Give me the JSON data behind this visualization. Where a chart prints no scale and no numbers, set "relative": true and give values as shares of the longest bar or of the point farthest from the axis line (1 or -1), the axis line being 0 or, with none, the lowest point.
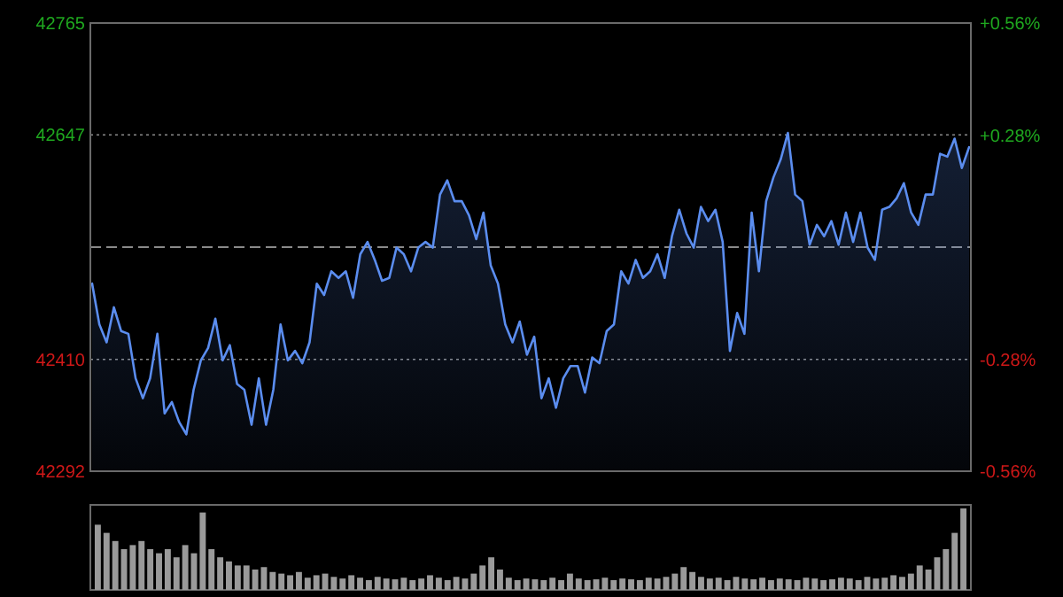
{
  "chart_data": [
    {
      "type": "area",
      "categories": [
        null,
        null,
        null,
        null,
        null,
        null,
        null,
        null,
        null,
        null,
        null,
        null,
        null,
        null,
        null,
        null,
        null,
        null,
        null,
        null,
        null,
        null,
        null,
        null,
        null,
        null,
        null,
        null,
        null,
        null,
        null,
        null,
        null,
        null,
        null,
        null,
        null,
        null,
        null,
        null,
        null,
        null,
        null,
        null,
        null,
        null,
        null,
        null,
        null,
        null,
        null,
        null,
        null,
        null,
        null,
        null,
        null,
        null,
        null,
        null,
        null,
        null,
        null,
        null,
        null,
        null,
        null,
        null,
        null,
        null,
        null,
        null,
        null,
        null,
        null,
        null,
        null,
        null,
        null,
        null,
        null,
        null,
        null,
        null,
        null,
        null,
        null,
        null,
        null,
        null,
        null,
        null,
        null,
        null,
        null,
        null,
        null,
        null,
        null,
        null,
        null,
        null,
        null,
        null,
        null,
        null,
        null,
        null,
        null,
        null,
        null,
        null,
        null,
        null,
        null,
        null,
        null,
        null,
        null,
        null,
        null,
        null
      ],
      "ylim": [
        42292,
        42765
      ],
      "yticks": [
        42292,
        42410,
        42647,
        42765
      ],
      "y2lim": [
        -0.56,
        0.56
      ],
      "y2ticks": [
        {
          "value": -0.56,
          "label": "-0.56%"
        },
        {
          "value": -0.28,
          "label": "-0.28%"
        },
        {
          "value": 0.28,
          "label": "+0.28%"
        },
        {
          "value": 0.56,
          "label": "+0.56%"
        }
      ],
      "grid": "y",
      "ref_lines": [
        {
          "axis": "y2",
          "value": 0,
          "color": "#8a8a8a",
          "line_style": "dashed"
        }
      ],
      "series": [
        {
          "color": "#5b8def",
          "values": [
            42490,
            42447,
            42428,
            42465,
            42440,
            42437,
            42390,
            42369,
            42390,
            42437,
            42353,
            42365,
            42344,
            42331,
            42378,
            42409,
            42422,
            42453,
            42409,
            42425,
            42384,
            42378,
            42341,
            42390,
            42341,
            42378,
            42447,
            42409,
            42419,
            42406,
            42428,
            42490,
            42478,
            42503,
            42496,
            42503,
            42475,
            42521,
            42534,
            42515,
            42493,
            42496,
            42528,
            42521,
            42503,
            42528,
            42534,
            42528,
            42584,
            42599,
            42577,
            42577,
            42562,
            42537,
            42565,
            42509,
            42490,
            42447,
            42428,
            42450,
            42415,
            42434,
            42369,
            42390,
            42359,
            42390,
            42403,
            42403,
            42375,
            42412,
            42406,
            42440,
            42447,
            42503,
            42490,
            42515,
            42496,
            42503,
            42521,
            42496,
            42540,
            42568,
            42543,
            42528,
            42571,
            42556,
            42568,
            42534,
            42419,
            42459,
            42437,
            42565,
            42503,
            42577,
            42602,
            42621,
            42649,
            42584,
            42577,
            42531,
            42552,
            42540,
            42556,
            42531,
            42565,
            42534,
            42565,
            42528,
            42515,
            42568,
            42571,
            42580,
            42596,
            42565,
            42552,
            42584,
            42584,
            42627,
            42624,
            42643,
            42612,
            42634
          ]
        }
      ]
    },
    {
      "type": "bar",
      "relative": true,
      "color": "#9a9a9a",
      "categories": [
        null,
        null,
        null,
        null,
        null,
        null,
        null,
        null,
        null,
        null,
        null,
        null,
        null,
        null,
        null,
        null,
        null,
        null,
        null,
        null,
        null,
        null,
        null,
        null,
        null,
        null,
        null,
        null,
        null,
        null,
        null,
        null,
        null,
        null,
        null,
        null,
        null,
        null,
        null,
        null,
        null,
        null,
        null,
        null,
        null,
        null,
        null,
        null,
        null,
        null,
        null,
        null,
        null,
        null,
        null,
        null,
        null,
        null,
        null,
        null,
        null,
        null,
        null,
        null,
        null,
        null,
        null,
        null,
        null,
        null,
        null,
        null,
        null,
        null,
        null,
        null,
        null,
        null,
        null,
        null,
        null,
        null,
        null,
        null,
        null,
        null,
        null,
        null,
        null,
        null,
        null,
        null,
        null,
        null,
        null,
        null,
        null,
        null,
        null,
        null
      ],
      "values": [
        0.8,
        0.7,
        0.6,
        0.5,
        0.55,
        0.6,
        0.5,
        0.45,
        0.5,
        0.4,
        0.55,
        0.45,
        0.95,
        0.5,
        0.4,
        0.35,
        0.3,
        0.3,
        0.25,
        0.28,
        0.22,
        0.2,
        0.18,
        0.22,
        0.15,
        0.18,
        0.2,
        0.16,
        0.14,
        0.18,
        0.15,
        0.12,
        0.16,
        0.14,
        0.13,
        0.15,
        0.12,
        0.14,
        0.18,
        0.15,
        0.12,
        0.16,
        0.14,
        0.2,
        0.3,
        0.4,
        0.25,
        0.15,
        0.12,
        0.14,
        0.13,
        0.12,
        0.15,
        0.12,
        0.2,
        0.14,
        0.12,
        0.13,
        0.15,
        0.12,
        0.14,
        0.13,
        0.12,
        0.15,
        0.14,
        0.16,
        0.2,
        0.28,
        0.22,
        0.16,
        0.14,
        0.15,
        0.12,
        0.16,
        0.14,
        0.13,
        0.15,
        0.12,
        0.14,
        0.13,
        0.12,
        0.15,
        0.14,
        0.12,
        0.13,
        0.15,
        0.14,
        0.12,
        0.16,
        0.14,
        0.15,
        0.18,
        0.16,
        0.2,
        0.3,
        0.25,
        0.4,
        0.5,
        0.7,
        1
      ]
    }
  ]
}
